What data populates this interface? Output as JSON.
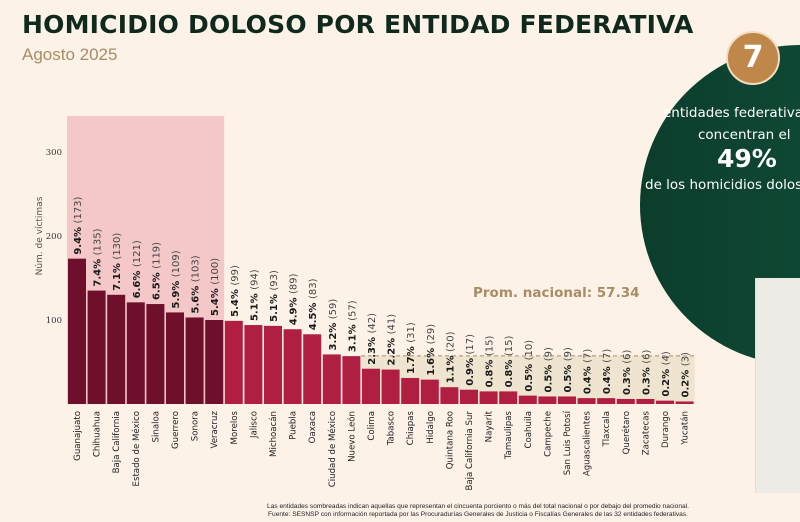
{
  "header": {
    "title": "HOMICIDIO DOLOSO POR ENTIDAD FEDERATIVA",
    "subtitle": "Agosto 2025"
  },
  "callout": {
    "badge_number": "7",
    "line1": "entidades federativas",
    "line2": "concentran el",
    "percent": "49%",
    "line3": "de los homicidios dolosos"
  },
  "footnotes": {
    "note": "Las entidades sombreadas indican aquellas que representan el cincuenta porciento o más del total nacional o por debajo del promedio nacional.",
    "source": "Fuente: SESNSP con información reportada por las Procuradurías Generales de Justicia o Fiscalías Generales de las 32 entidades federativas."
  },
  "colors": {
    "top_bar": "#6e0f2b",
    "mid_bar": "#b01e42",
    "top_highlight": "#f4c7c8",
    "below_avg_shade": "#efe4cf",
    "avg_line": "#a88c66"
  },
  "chart_data": {
    "type": "bar",
    "title": "HOMICIDIO DOLOSO POR ENTIDAD FEDERATIVA",
    "subtitle": "Agosto 2025",
    "xlabel": "",
    "ylabel": "Núm. de víctimas",
    "ylim": [
      0,
      340
    ],
    "yticks": [
      100,
      200,
      300
    ],
    "grid": false,
    "average": {
      "label": "Prom. nacional: 57.34",
      "value": 57.34
    },
    "categories": [
      "Guanajuato",
      "Chihuahua",
      "Baja California",
      "Estado de México",
      "Sinaloa",
      "Guerrero",
      "Sonora",
      "Veracruz",
      "Morelos",
      "Jalisco",
      "Michoacán",
      "Puebla",
      "Oaxaca",
      "Ciudad de México",
      "Nuevo León",
      "Colima",
      "Tabasco",
      "Chiapas",
      "Hidalgo",
      "Quintana Roo",
      "Baja California Sur",
      "Nayarit",
      "Tamaulipas",
      "Coahuila",
      "Campeche",
      "San Luis Potosí",
      "Aguascalientes",
      "Tlaxcala",
      "Querétaro",
      "Zacatecas",
      "Durango",
      "Yucatán"
    ],
    "values": [
      173,
      135,
      130,
      121,
      119,
      109,
      103,
      100,
      99,
      94,
      93,
      89,
      83,
      59,
      57,
      42,
      41,
      31,
      29,
      20,
      17,
      15,
      15,
      10,
      9,
      9,
      7,
      7,
      6,
      6,
      4,
      3
    ],
    "percents": [
      "9.4%",
      "7.4%",
      "7.1%",
      "6.6%",
      "6.5%",
      "5.9%",
      "5.6%",
      "5.4%",
      "5.4%",
      "5.1%",
      "5.1%",
      "4.9%",
      "4.5%",
      "3.2%",
      "3.1%",
      "2.3%",
      "2.2%",
      "1.7%",
      "1.6%",
      "1.1%",
      "0.9%",
      "0.8%",
      "0.8%",
      "0.5%",
      "0.5%",
      "0.5%",
      "0.4%",
      "0.4%",
      "0.3%",
      "0.3%",
      "0.2%",
      "0.2%"
    ],
    "top_group_count": 7,
    "top_highlight_range": [
      "Guanajuato",
      "Veracruz"
    ],
    "below_average_range": [
      "Colima",
      "Yucatán"
    ]
  }
}
